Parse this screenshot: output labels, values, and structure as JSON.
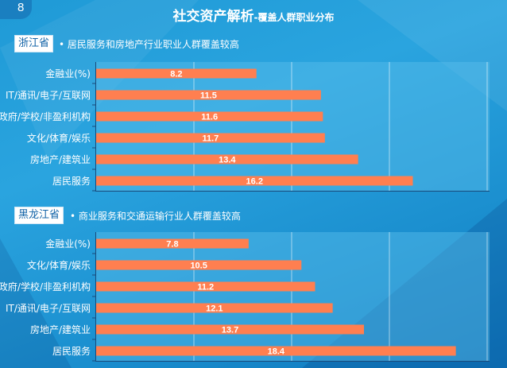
{
  "page_number": "8",
  "title": {
    "main": "社交资产解析",
    "sub": "-覆盖人群职业分布"
  },
  "sections": [
    {
      "region": "浙江省",
      "subtitle": "居民服务和房地产行业职业人群覆盖较高"
    },
    {
      "region": "黑龙江省",
      "subtitle": "商业服务和交通运输行业人群覆盖较高"
    }
  ],
  "chart_data": [
    {
      "type": "bar",
      "orientation": "horizontal",
      "title": "",
      "categories": [
        "金融业(%)",
        "IT/通讯/电子/互联网",
        "政府/学校/非盈利机构",
        "文化/体育/娱乐",
        "房地产/建筑业",
        "居民服务"
      ],
      "values": [
        8.2,
        11.5,
        11.6,
        11.7,
        13.4,
        16.2
      ],
      "xlim": [
        0,
        20
      ],
      "grid": true,
      "bar_color": "#ff7f50",
      "data_labels": [
        "8.2",
        "11.5",
        "11.6",
        "11.7",
        "13.4",
        "16.2"
      ]
    },
    {
      "type": "bar",
      "orientation": "horizontal",
      "title": "",
      "categories": [
        "金融业(%)",
        "文化/体育/娱乐",
        "政府/学校/非盈利机构",
        "IT/通讯/电子/互联网",
        "房地产/建筑业",
        "居民服务"
      ],
      "values": [
        7.8,
        10.5,
        11.2,
        12.1,
        13.7,
        18.4
      ],
      "xlim": [
        0,
        20
      ],
      "grid": true,
      "bar_color": "#ff7f50",
      "data_labels": [
        "7.8",
        "10.5",
        "11.2",
        "12.1",
        "13.7",
        "18.4"
      ]
    }
  ]
}
